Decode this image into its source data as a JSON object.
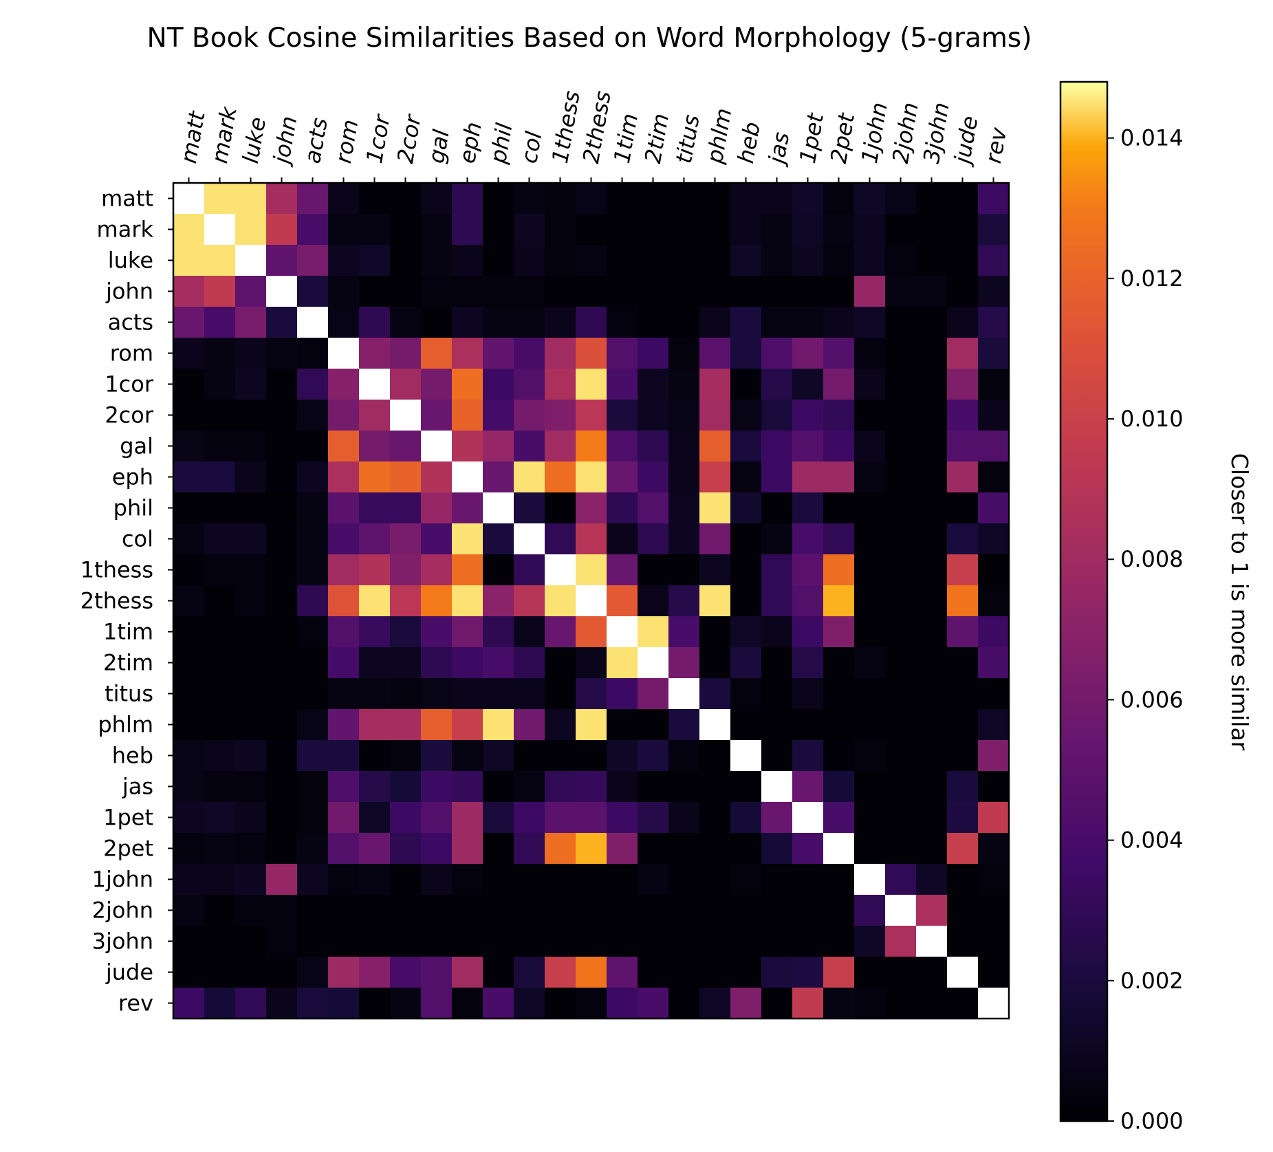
{
  "chart_data": {
    "type": "heatmap",
    "title": "NT Book Cosine Similarities Based on Word Morphology (5-grams)",
    "colormap": "inferno",
    "vmin": 0.0,
    "vmax": 0.0148,
    "labels": [
      "matt",
      "mark",
      "luke",
      "john",
      "acts",
      "rom",
      "1cor",
      "2cor",
      "gal",
      "eph",
      "phil",
      "col",
      "1thess",
      "2thess",
      "1tim",
      "2tim",
      "titus",
      "phlm",
      "heb",
      "jas",
      "1pet",
      "2pet",
      "1john",
      "2john",
      "3john",
      "jude",
      "rev"
    ],
    "x_tick_position": "top",
    "x_tick_rotation": "rotated ~80 degrees",
    "colorbar": {
      "label": "Closer to 1 is more similar",
      "ticks": [
        "0.000",
        "0.002",
        "0.004",
        "0.006",
        "0.008",
        "0.010",
        "0.012",
        "0.014"
      ],
      "tick_values": [
        0.0,
        0.002,
        0.004,
        0.006,
        0.008,
        0.01,
        0.012,
        0.014
      ]
    },
    "matrix": [
      [
        1.0,
        0.0145,
        0.0145,
        0.0082,
        0.0055,
        0.0008,
        0.0001,
        0.0001,
        0.0008,
        0.0028,
        0.0001,
        0.0005,
        0.0003,
        0.0007,
        0.0001,
        0.0001,
        0.0001,
        0.0001,
        0.0008,
        0.0008,
        0.0013,
        0.0004,
        0.0012,
        0.0007,
        0.0001,
        0.0001,
        0.0035
      ],
      [
        0.0145,
        1.0,
        0.0145,
        0.0095,
        0.004,
        0.0005,
        0.0005,
        0.0001,
        0.0005,
        0.0028,
        0.0001,
        0.001,
        0.0003,
        0.0001,
        0.0001,
        0.0001,
        0.0001,
        0.0001,
        0.0008,
        0.0005,
        0.0012,
        0.0005,
        0.001,
        0.0001,
        0.0001,
        0.0001,
        0.002
      ],
      [
        0.0145,
        0.0145,
        1.0,
        0.005,
        0.0062,
        0.001,
        0.0013,
        0.0001,
        0.0005,
        0.0008,
        0.0001,
        0.0008,
        0.0003,
        0.0005,
        0.0001,
        0.0001,
        0.0001,
        0.0001,
        0.0012,
        0.0005,
        0.001,
        0.0004,
        0.001,
        0.0004,
        0.0001,
        0.0001,
        0.003
      ],
      [
        0.0082,
        0.0095,
        0.005,
        1.0,
        0.002,
        0.0005,
        0.0001,
        0.0001,
        0.0004,
        0.0003,
        0.0003,
        0.0003,
        0.0001,
        0.0001,
        0.0001,
        0.0001,
        0.0001,
        0.0001,
        0.0001,
        0.0001,
        0.0001,
        0.0001,
        0.0075,
        0.0005,
        0.0005,
        0.0001,
        0.001
      ],
      [
        0.0055,
        0.004,
        0.0062,
        0.002,
        1.0,
        0.0007,
        0.0028,
        0.0005,
        0.0001,
        0.001,
        0.0005,
        0.0005,
        0.0008,
        0.0028,
        0.0004,
        0.0002,
        0.0001,
        0.0008,
        0.002,
        0.0005,
        0.0005,
        0.0008,
        0.0012,
        0.0001,
        0.0001,
        0.0008,
        0.0025
      ],
      [
        0.0008,
        0.0005,
        0.0008,
        0.0005,
        0.0004,
        1.0,
        0.0068,
        0.006,
        0.0118,
        0.0085,
        0.0052,
        0.004,
        0.008,
        0.011,
        0.0045,
        0.0035,
        0.0003,
        0.0048,
        0.002,
        0.0042,
        0.0058,
        0.0045,
        0.0004,
        0.0001,
        0.0001,
        0.008,
        0.002
      ],
      [
        0.0001,
        0.0005,
        0.001,
        0.0001,
        0.003,
        0.0068,
        1.0,
        0.008,
        0.006,
        0.0125,
        0.0035,
        0.0045,
        0.0085,
        0.0145,
        0.004,
        0.001,
        0.0005,
        0.0082,
        0.0002,
        0.0025,
        0.0012,
        0.006,
        0.0008,
        0.0001,
        0.0001,
        0.0065,
        0.0003
      ],
      [
        0.0001,
        0.0001,
        0.0001,
        0.0001,
        0.0006,
        0.006,
        0.008,
        1.0,
        0.0055,
        0.012,
        0.0038,
        0.006,
        0.0065,
        0.0092,
        0.002,
        0.001,
        0.0006,
        0.008,
        0.0006,
        0.002,
        0.0035,
        0.003,
        0.0001,
        0.0001,
        0.0001,
        0.004,
        0.0008
      ],
      [
        0.0006,
        0.0004,
        0.0004,
        0.0002,
        0.0002,
        0.0118,
        0.006,
        0.0055,
        1.0,
        0.0088,
        0.0075,
        0.004,
        0.008,
        0.013,
        0.0042,
        0.0028,
        0.0008,
        0.0118,
        0.002,
        0.0035,
        0.0045,
        0.0035,
        0.0008,
        0.0001,
        0.0001,
        0.0045,
        0.0045
      ],
      [
        0.002,
        0.002,
        0.0008,
        0.0002,
        0.001,
        0.0085,
        0.0125,
        0.012,
        0.0088,
        1.0,
        0.0055,
        0.0145,
        0.0125,
        0.0145,
        0.0055,
        0.0035,
        0.0008,
        0.0098,
        0.0005,
        0.0035,
        0.0078,
        0.0078,
        0.0005,
        0.0001,
        0.0001,
        0.0078,
        0.0003
      ],
      [
        0.0001,
        0.0001,
        0.0001,
        0.0001,
        0.0005,
        0.0048,
        0.0033,
        0.0033,
        0.0075,
        0.0055,
        1.0,
        0.002,
        0.0001,
        0.007,
        0.0028,
        0.0045,
        0.001,
        0.0145,
        0.0015,
        0.0001,
        0.002,
        0.0001,
        0.0001,
        0.0001,
        0.0001,
        0.0001,
        0.004
      ],
      [
        0.0005,
        0.001,
        0.001,
        0.0002,
        0.0005,
        0.004,
        0.005,
        0.0062,
        0.004,
        0.0145,
        0.002,
        1.0,
        0.003,
        0.009,
        0.0008,
        0.0028,
        0.001,
        0.0058,
        0.0001,
        0.0005,
        0.004,
        0.003,
        0.0001,
        0.0001,
        0.0001,
        0.002,
        0.0012
      ],
      [
        0.0002,
        0.0004,
        0.0004,
        0.0001,
        0.0005,
        0.008,
        0.0088,
        0.0065,
        0.0082,
        0.0125,
        0.0001,
        0.003,
        1.0,
        0.0145,
        0.0055,
        0.0001,
        0.0001,
        0.001,
        0.0001,
        0.003,
        0.0048,
        0.0125,
        0.0001,
        0.0001,
        0.0001,
        0.0098,
        0.0001
      ],
      [
        0.0005,
        0.0001,
        0.0004,
        0.0001,
        0.0028,
        0.0112,
        0.0145,
        0.0092,
        0.013,
        0.0145,
        0.007,
        0.009,
        0.0145,
        1.0,
        0.0115,
        0.0008,
        0.0025,
        0.0145,
        0.0001,
        0.003,
        0.0045,
        0.014,
        0.0001,
        0.0001,
        0.0001,
        0.0128,
        0.0003
      ],
      [
        0.0001,
        0.0001,
        0.0001,
        0.0001,
        0.0004,
        0.0045,
        0.0033,
        0.002,
        0.004,
        0.0058,
        0.0028,
        0.0008,
        0.0055,
        0.0115,
        1.0,
        0.0145,
        0.004,
        0.0001,
        0.0012,
        0.0008,
        0.0035,
        0.0065,
        0.0001,
        0.0001,
        0.0001,
        0.005,
        0.0035
      ],
      [
        0.0001,
        0.0001,
        0.0001,
        0.0001,
        0.0001,
        0.0038,
        0.001,
        0.001,
        0.0028,
        0.0035,
        0.004,
        0.0028,
        0.0001,
        0.0008,
        0.0145,
        1.0,
        0.006,
        0.0001,
        0.002,
        0.0001,
        0.0025,
        0.0001,
        0.0005,
        0.0001,
        0.0001,
        0.0001,
        0.004
      ],
      [
        0.0001,
        0.0001,
        0.0001,
        0.0001,
        0.0001,
        0.0005,
        0.0005,
        0.0004,
        0.0006,
        0.0008,
        0.0008,
        0.0008,
        0.0001,
        0.0025,
        0.0035,
        0.006,
        1.0,
        0.002,
        0.0004,
        0.0001,
        0.0008,
        0.0001,
        0.0001,
        0.0001,
        0.0001,
        0.0001,
        0.0001
      ],
      [
        0.0001,
        0.0001,
        0.0001,
        0.0001,
        0.0006,
        0.0052,
        0.0082,
        0.0082,
        0.0118,
        0.0098,
        0.0145,
        0.0058,
        0.001,
        0.0145,
        0.0001,
        0.0001,
        0.002,
        1.0,
        0.0001,
        0.0001,
        0.0001,
        0.0001,
        0.0001,
        0.0001,
        0.0001,
        0.0001,
        0.0012
      ],
      [
        0.0006,
        0.0008,
        0.001,
        0.0002,
        0.002,
        0.002,
        0.0002,
        0.0003,
        0.002,
        0.0005,
        0.0012,
        0.0001,
        0.0001,
        0.0001,
        0.0012,
        0.002,
        0.0004,
        0.0001,
        1.0,
        0.0001,
        0.002,
        0.0002,
        0.0003,
        0.0001,
        0.0001,
        0.0001,
        0.0065
      ],
      [
        0.0006,
        0.0004,
        0.0004,
        0.0001,
        0.0003,
        0.0042,
        0.0025,
        0.0018,
        0.0035,
        0.0032,
        0.0001,
        0.0005,
        0.003,
        0.0032,
        0.0008,
        0.0001,
        0.0001,
        0.0001,
        0.0001,
        1.0,
        0.0055,
        0.0018,
        0.0001,
        0.0001,
        0.0001,
        0.002,
        0.0001
      ],
      [
        0.001,
        0.0012,
        0.0008,
        0.0001,
        0.0003,
        0.0058,
        0.0012,
        0.0035,
        0.0045,
        0.0078,
        0.002,
        0.0035,
        0.0048,
        0.0048,
        0.0035,
        0.0025,
        0.0008,
        0.0001,
        0.0018,
        0.0055,
        1.0,
        0.004,
        0.0001,
        0.0001,
        0.0001,
        0.0022,
        0.0095
      ],
      [
        0.0004,
        0.0005,
        0.0004,
        0.0001,
        0.0005,
        0.0045,
        0.0055,
        0.0028,
        0.0035,
        0.0078,
        0.0001,
        0.003,
        0.0125,
        0.014,
        0.0065,
        0.0001,
        0.0001,
        0.0001,
        0.0001,
        0.0018,
        0.004,
        1.0,
        0.0001,
        0.0001,
        0.0001,
        0.0098,
        0.0005
      ],
      [
        0.0008,
        0.0008,
        0.001,
        0.0075,
        0.001,
        0.0004,
        0.0005,
        0.0001,
        0.0008,
        0.0004,
        0.0001,
        0.0001,
        0.0001,
        0.0001,
        0.0001,
        0.0005,
        0.0001,
        0.0001,
        0.0003,
        0.0001,
        0.0001,
        0.0001,
        1.0,
        0.003,
        0.0012,
        0.0001,
        0.0003
      ],
      [
        0.0005,
        0.0001,
        0.0004,
        0.0004,
        0.0001,
        0.0001,
        0.0001,
        0.0001,
        0.0001,
        0.0001,
        0.0001,
        0.0001,
        0.0001,
        0.0001,
        0.0001,
        0.0001,
        0.0001,
        0.0001,
        0.0001,
        0.0001,
        0.0001,
        0.0001,
        0.003,
        1.0,
        0.0085,
        0.0001,
        0.0001
      ],
      [
        0.0001,
        0.0001,
        0.0001,
        0.0004,
        0.0001,
        0.0001,
        0.0001,
        0.0001,
        0.0001,
        0.0001,
        0.0001,
        0.0001,
        0.0001,
        0.0001,
        0.0001,
        0.0001,
        0.0001,
        0.0001,
        0.0001,
        0.0001,
        0.0001,
        0.0001,
        0.0012,
        0.0085,
        1.0,
        0.0001,
        0.0001
      ],
      [
        0.0001,
        0.0001,
        0.0001,
        0.0001,
        0.0006,
        0.0078,
        0.0068,
        0.004,
        0.0045,
        0.008,
        0.0001,
        0.002,
        0.0098,
        0.0128,
        0.005,
        0.0001,
        0.0001,
        0.0001,
        0.0001,
        0.002,
        0.0022,
        0.0098,
        0.0001,
        0.0001,
        0.0001,
        1.0,
        0.0001
      ],
      [
        0.0035,
        0.0018,
        0.003,
        0.0008,
        0.002,
        0.0018,
        0.0001,
        0.0005,
        0.0045,
        0.0003,
        0.004,
        0.0012,
        0.0001,
        0.0003,
        0.0035,
        0.004,
        0.0001,
        0.0012,
        0.0065,
        0.0001,
        0.0095,
        0.0005,
        0.0004,
        0.0001,
        0.0001,
        0.0001,
        1.0
      ]
    ]
  }
}
